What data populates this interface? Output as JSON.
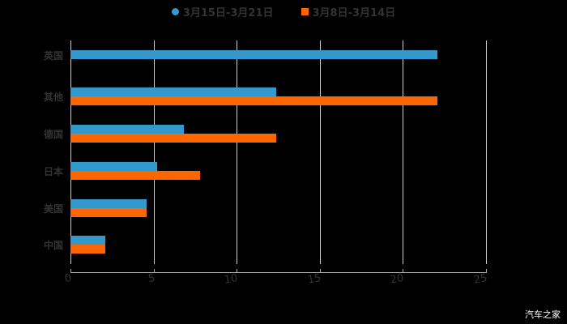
{
  "chart_data": {
    "type": "bar",
    "orientation": "horizontal",
    "title": "",
    "xlabel": "",
    "ylabel": "",
    "categories": [
      "英国",
      "其他",
      "德国",
      "日本",
      "美国",
      "中国"
    ],
    "series": [
      {
        "name": "3月15日-3月21日",
        "color": "#3399CC",
        "values": [
          22.1,
          12.4,
          6.8,
          5.2,
          4.6,
          2.1
        ]
      },
      {
        "name": "3月8日-3月14日",
        "color": "#FF6600",
        "values": [
          null,
          22.1,
          12.4,
          7.8,
          4.6,
          2.1
        ]
      }
    ],
    "xlim": [
      0,
      25
    ],
    "xticks": [
      "0",
      "5",
      "10",
      "15",
      "20",
      "25"
    ],
    "grid": true,
    "legend_position": "top"
  },
  "legend": {
    "items": [
      {
        "label": "3月15日-3月21日",
        "color": "#3399CC"
      },
      {
        "label": "3月8日-3月14日",
        "color": "#FF6600"
      }
    ]
  },
  "watermark": "汽车之家"
}
